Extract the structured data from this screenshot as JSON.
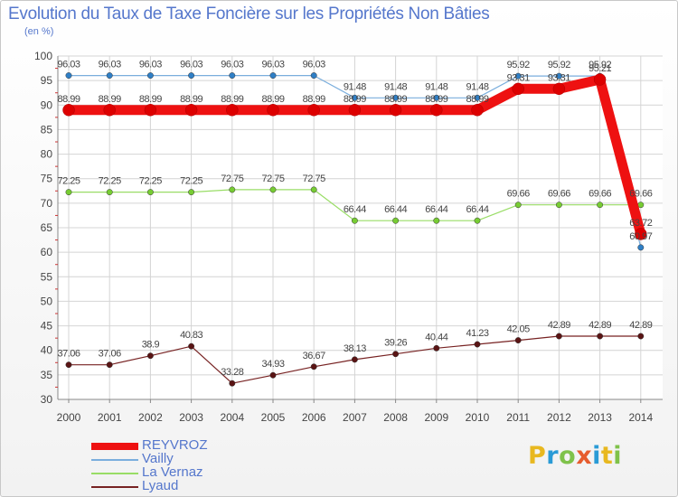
{
  "title": "Evolution du Taux de Taxe Foncière sur les Propriétés Non Bâties",
  "unit_label": "(en %)",
  "logo": {
    "letters": [
      "P",
      "r",
      "o",
      "x",
      "i",
      "t",
      "i"
    ],
    "colors": [
      "#e8b820",
      "#2a9bd6",
      "#7fc24a",
      "#e65c2e",
      "#2a9bd6",
      "#e8b820",
      "#7fc24a"
    ]
  },
  "chart_data": {
    "type": "line",
    "x": [
      "2000",
      "2001",
      "2002",
      "2003",
      "2004",
      "2005",
      "2006",
      "2007",
      "2008",
      "2009",
      "2010",
      "2011",
      "2012",
      "2013",
      "2014"
    ],
    "ylim": [
      30,
      100
    ],
    "yticks": [
      "30",
      "35",
      "40",
      "45",
      "50",
      "55",
      "60",
      "65",
      "70",
      "75",
      "80",
      "85",
      "90",
      "95",
      "100"
    ],
    "grid": true,
    "series": [
      {
        "name": "REYVROZ",
        "color": "#ee1111",
        "marker": "#dd0000",
        "emphasis": true,
        "values": [
          88.99,
          88.99,
          88.99,
          88.99,
          88.99,
          88.99,
          88.99,
          88.99,
          88.99,
          88.99,
          88.99,
          93.31,
          93.31,
          95.21,
          63.72
        ],
        "labels": [
          "88.99",
          "88.99",
          "88.99",
          "88.99",
          "88.99",
          "88.99",
          "88.99",
          "88.99",
          "88.99",
          "88.99",
          "88.99",
          "93.31",
          "93.31",
          "95.21",
          "63.72"
        ]
      },
      {
        "name": "Vailly",
        "color": "#7aaedd",
        "marker": "#2f7fc6",
        "emphasis": false,
        "values": [
          96.03,
          96.03,
          96.03,
          96.03,
          96.03,
          96.03,
          96.03,
          91.48,
          91.48,
          91.48,
          91.48,
          95.92,
          95.92,
          95.92,
          60.97
        ],
        "labels": [
          "96.03",
          "96.03",
          "96.03",
          "96.03",
          "96.03",
          "96.03",
          "96.03",
          "91.48",
          "91.48",
          "91.48",
          "91.48",
          "95.92",
          "95.92",
          "95.92",
          "60.97"
        ]
      },
      {
        "name": "La Vernaz",
        "color": "#99dd66",
        "marker": "#77cc33",
        "emphasis": false,
        "values": [
          72.25,
          72.25,
          72.25,
          72.25,
          72.75,
          72.75,
          72.75,
          66.44,
          66.44,
          66.44,
          66.44,
          69.66,
          69.66,
          69.66,
          69.66
        ],
        "labels": [
          "72.25",
          "72.25",
          "72.25",
          "72.25",
          "72.75",
          "72.75",
          "72.75",
          "66.44",
          "66.44",
          "66.44",
          "66.44",
          "69.66",
          "69.66",
          "69.66",
          "69.66"
        ]
      },
      {
        "name": "Lyaud",
        "color": "#772222",
        "marker": "#5a1414",
        "emphasis": false,
        "values": [
          37.06,
          37.06,
          38.9,
          40.83,
          33.28,
          34.93,
          36.67,
          38.13,
          39.26,
          40.44,
          41.23,
          42.05,
          42.89,
          42.89,
          42.89
        ],
        "labels": [
          "37.06",
          "37.06",
          "38.9",
          "40.83",
          "33.28",
          "34.93",
          "36.67",
          "38.13",
          "39.26",
          "40.44",
          "41.23",
          "42.05",
          "42.89",
          "42.89",
          "42.89"
        ]
      }
    ]
  }
}
